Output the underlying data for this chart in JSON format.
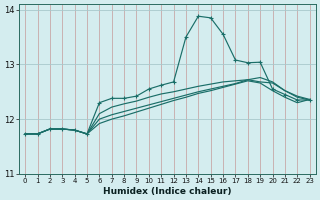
{
  "xlabel": "Humidex (Indice chaleur)",
  "bg_color": "#d4edef",
  "grid_color_x": "#c8a8a8",
  "grid_color_y": "#a8c8cc",
  "line_color": "#1a6e68",
  "xlim": [
    -0.5,
    23.5
  ],
  "ylim": [
    11.0,
    14.1
  ],
  "xticks": [
    0,
    1,
    2,
    3,
    4,
    5,
    6,
    7,
    8,
    9,
    10,
    11,
    12,
    13,
    14,
    15,
    16,
    17,
    18,
    19,
    20,
    21,
    22,
    23
  ],
  "yticks": [
    11,
    12,
    13,
    14
  ],
  "peaked_y": [
    11.73,
    11.73,
    11.82,
    11.82,
    11.8,
    11.73,
    12.3,
    12.38,
    12.38,
    12.42,
    12.55,
    12.62,
    12.68,
    13.5,
    13.88,
    13.85,
    13.55,
    13.08,
    13.03,
    13.04,
    12.55,
    12.45,
    12.35,
    12.35
  ],
  "line1_y": [
    11.73,
    11.73,
    11.82,
    11.82,
    11.8,
    11.73,
    12.1,
    12.22,
    12.28,
    12.33,
    12.4,
    12.46,
    12.5,
    12.55,
    12.6,
    12.64,
    12.68,
    12.7,
    12.72,
    12.68,
    12.66,
    12.52,
    12.4,
    12.35
  ],
  "line2_y": [
    11.73,
    11.73,
    11.82,
    11.82,
    11.8,
    11.73,
    12.0,
    12.08,
    12.14,
    12.2,
    12.26,
    12.32,
    12.38,
    12.44,
    12.5,
    12.55,
    12.6,
    12.65,
    12.72,
    12.76,
    12.68,
    12.52,
    12.42,
    12.36
  ],
  "line3_y": [
    11.73,
    11.73,
    11.82,
    11.82,
    11.8,
    11.73,
    11.92,
    12.0,
    12.06,
    12.13,
    12.2,
    12.27,
    12.34,
    12.4,
    12.47,
    12.52,
    12.58,
    12.64,
    12.7,
    12.66,
    12.52,
    12.4,
    12.3,
    12.36
  ]
}
